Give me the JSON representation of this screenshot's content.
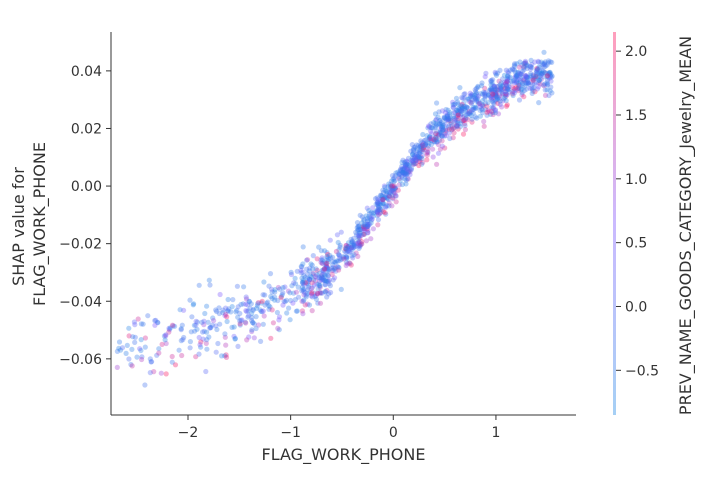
{
  "chart_data": {
    "type": "scatter",
    "title": "",
    "xlabel": "FLAG_WORK_PHONE",
    "ylabel_lines": [
      "SHAP value for",
      "FLAG_WORK_PHONE"
    ],
    "xlim": [
      -2.75,
      1.78
    ],
    "ylim": [
      -0.0795,
      0.0535
    ],
    "x_ticks": [
      -2,
      -1,
      0,
      1
    ],
    "x_tick_labels": [
      "−2",
      "−1",
      "0",
      "1"
    ],
    "y_ticks": [
      -0.06,
      -0.04,
      -0.02,
      0.0,
      0.02,
      0.04
    ],
    "y_tick_labels": [
      "−0.06",
      "−0.04",
      "−0.02",
      "0.00",
      "0.02",
      "0.04"
    ],
    "grid": false,
    "colorbar": {
      "label": "PREV_NAME_GOODS_CATEGORY_Jewelry_MEAN",
      "range": [
        -0.85,
        2.15
      ],
      "ticks": [
        -0.5,
        0.0,
        0.5,
        1.0,
        1.5,
        2.0
      ],
      "tick_labels": [
        "−0.5",
        "0.0",
        "0.5",
        "1.0",
        "1.5",
        "2.0"
      ],
      "low_color": "#1e88e5",
      "mid_color": "#7c52ff",
      "high_color": "#ff0d57"
    },
    "point_opacity": 0.35,
    "trend": {
      "x": [
        -2.7,
        -2.2,
        -1.8,
        -1.4,
        -1.0,
        -0.8,
        -0.6,
        -0.4,
        -0.2,
        0.0,
        0.2,
        0.4,
        0.6,
        0.8,
        1.0,
        1.2,
        1.5
      ],
      "y": [
        -0.056,
        -0.053,
        -0.049,
        -0.043,
        -0.037,
        -0.033,
        -0.028,
        -0.021,
        -0.01,
        0.0,
        0.01,
        0.019,
        0.025,
        0.029,
        0.033,
        0.037,
        0.039
      ]
    },
    "n_points": 1500
  }
}
